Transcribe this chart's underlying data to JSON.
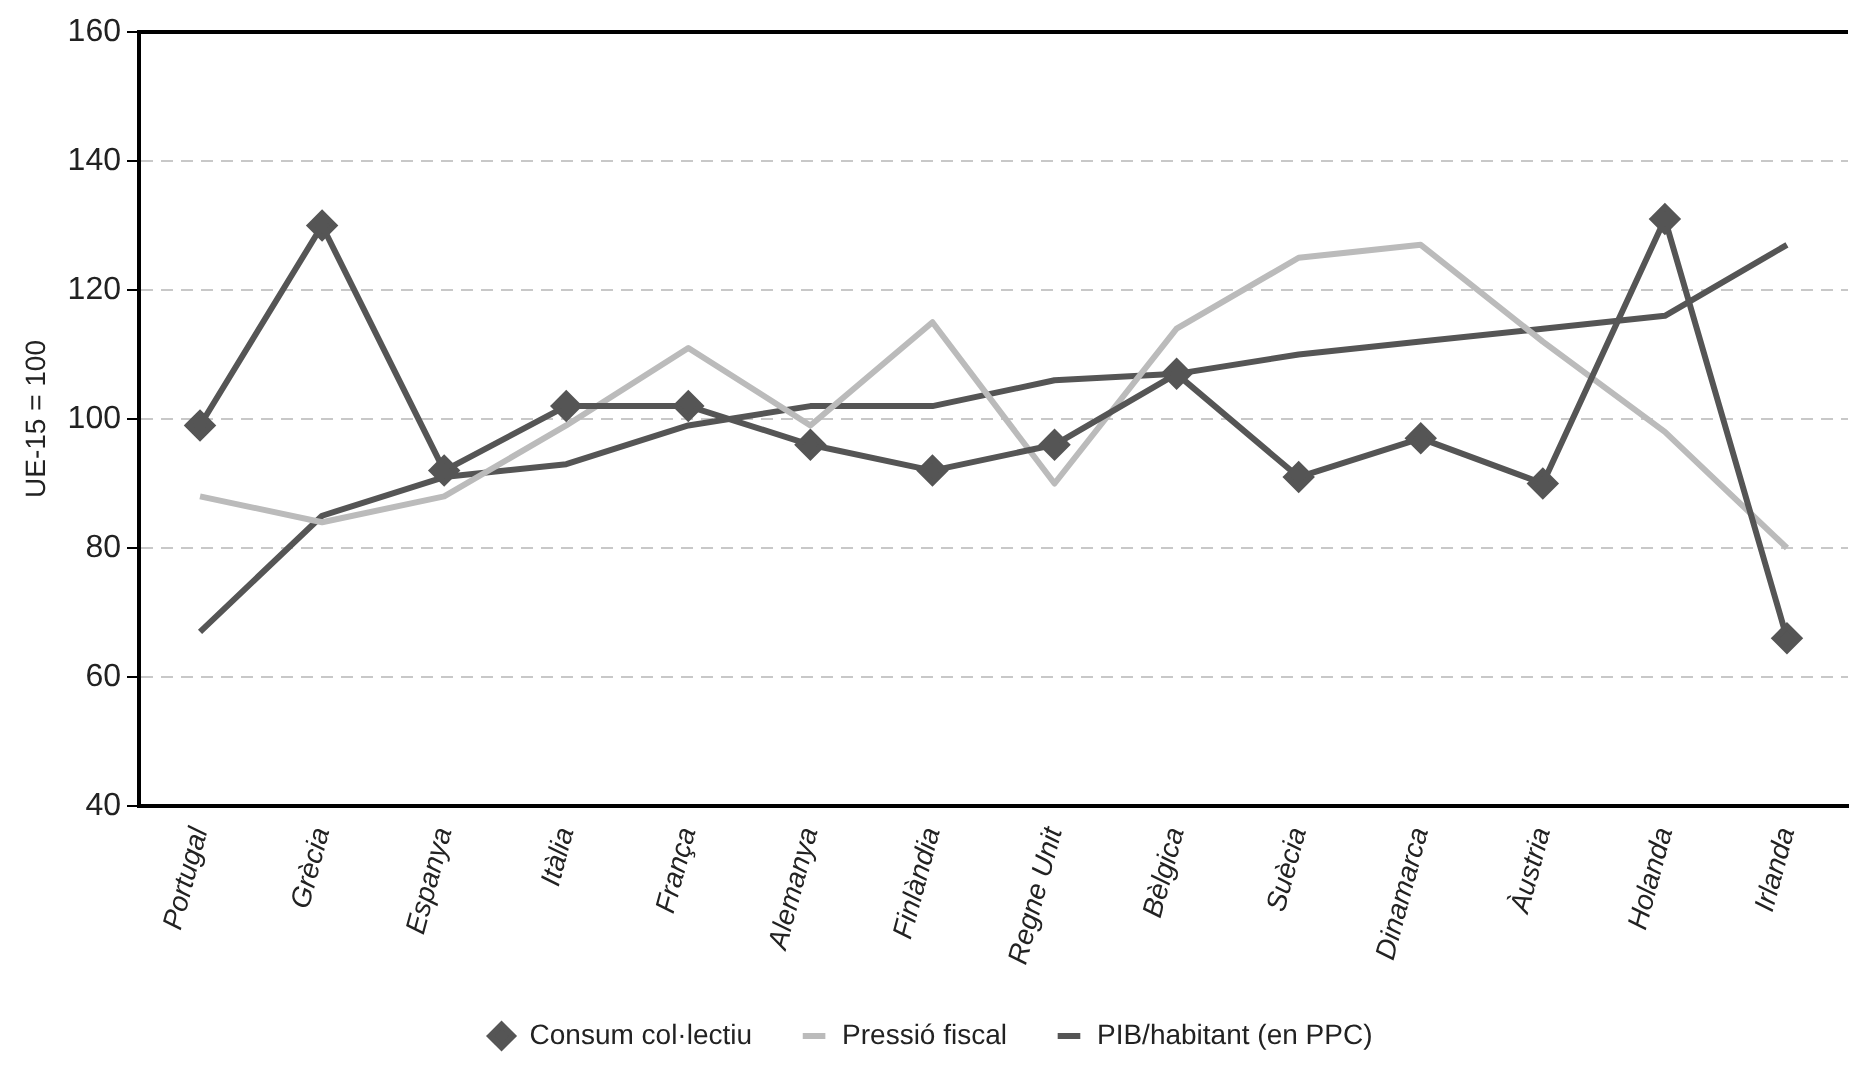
{
  "chart_data": {
    "type": "line",
    "ylabel": "UE-15 = 100",
    "categories": [
      "Portugal",
      "Grècia",
      "Espanya",
      "Itàlia",
      "França",
      "Alemanya",
      "Finlàndia",
      "Regne Unit",
      "Bèlgica",
      "Suècia",
      "Dinamarca",
      "Àustria",
      "Holanda",
      "Irlanda"
    ],
    "series": [
      {
        "name": "Consum col·lectiu",
        "color": "#555555",
        "marker": "diamond",
        "values": [
          99,
          130,
          92,
          102,
          102,
          96,
          92,
          96,
          107,
          91,
          97,
          90,
          131,
          66
        ]
      },
      {
        "name": "Pressió fiscal",
        "color": "#bbbbbb",
        "marker": "none",
        "values": [
          88,
          84,
          88,
          99,
          111,
          99,
          115,
          90,
          114,
          125,
          127,
          112,
          98,
          80
        ]
      },
      {
        "name": "PIB/habitant (en PPC)",
        "color": "#555555",
        "marker": "none",
        "values": [
          67,
          85,
          91,
          93,
          99,
          102,
          102,
          106,
          107,
          110,
          112,
          114,
          116,
          127
        ]
      }
    ],
    "ylim": [
      40,
      160
    ],
    "yticks": [
      40,
      60,
      80,
      100,
      120,
      140,
      160
    ],
    "grid": "y",
    "legend": "bottom",
    "line_style": "solid"
  }
}
